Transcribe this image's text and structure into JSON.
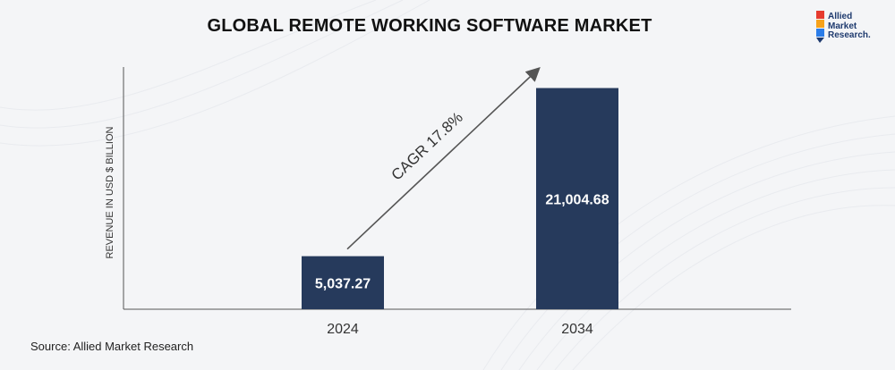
{
  "title": "GLOBAL REMOTE WORKING SOFTWARE MARKET",
  "logo": {
    "line1": "Allied",
    "line2": "Market",
    "line3": "Research.",
    "colors": [
      "#e63b2e",
      "#f7a21b",
      "#2b7de9",
      "#1e3a6e"
    ]
  },
  "source": "Source: Allied Market Research",
  "colors": {
    "bar": "#263a5c",
    "bar_label": "#ffffff",
    "axis": "#555555",
    "arrow": "#555555",
    "text": "#333333"
  },
  "chart_data": {
    "type": "bar",
    "title": "GLOBAL REMOTE WORKING SOFTWARE MARKET",
    "categories": [
      "2024",
      "2034"
    ],
    "values": [
      5037.27,
      21004.68
    ],
    "value_labels": [
      "5,037.27",
      "21,004.68"
    ],
    "xlabel": "",
    "ylabel": "REVENUE IN USD $ BILLION",
    "ylim": [
      0,
      23000
    ],
    "grid": false,
    "annotation": "CAGR 17.8%"
  }
}
